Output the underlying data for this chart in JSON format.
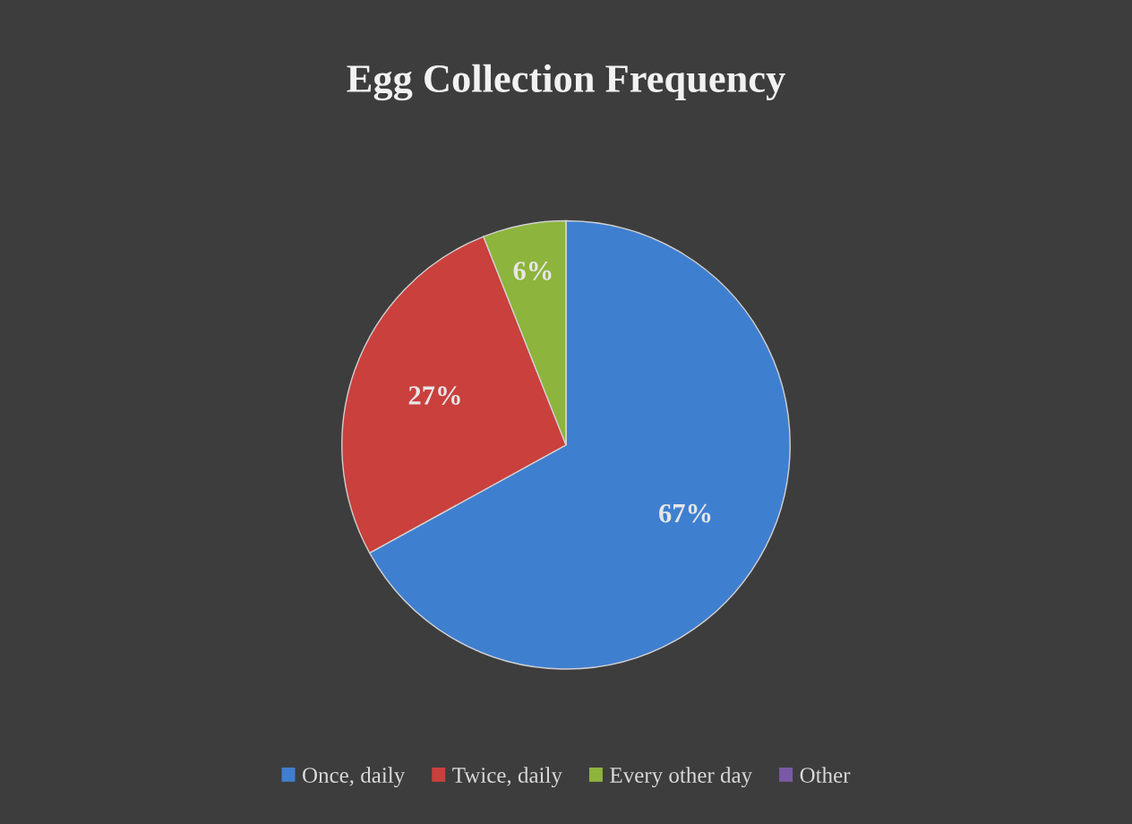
{
  "chart_data": {
    "type": "pie",
    "title": "Egg Collection Frequency",
    "categories": [
      "Once, daily",
      "Twice, daily",
      "Every other day",
      "Other"
    ],
    "values": [
      67,
      27,
      6,
      0
    ],
    "colors": [
      "#3f7fd0",
      "#c9403d",
      "#8db43c",
      "#7a5aa6"
    ],
    "value_labels": [
      "67%",
      "27%",
      "6%",
      null
    ],
    "legend": "bottom"
  }
}
